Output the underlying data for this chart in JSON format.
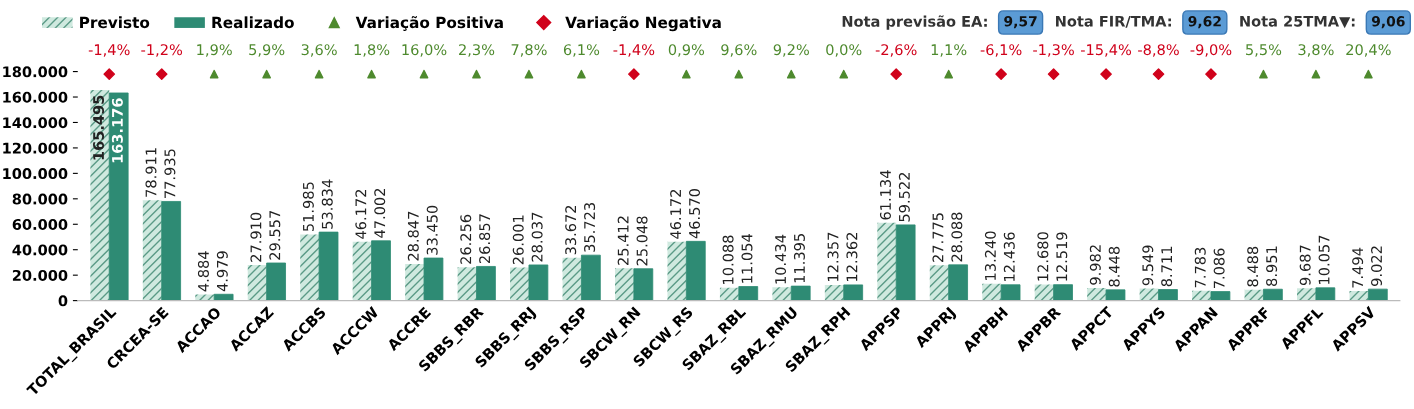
{
  "chart_data": {
    "type": "bar",
    "categories": [
      "TOTAL_BRASIL",
      "CRCEA-SE",
      "ACCAO",
      "ACCAZ",
      "ACCBS",
      "ACCCW",
      "ACCRE",
      "SBBS_RBR",
      "SBBS_RRJ",
      "SBBS_RSP",
      "SBCW_RN",
      "SBCW_RS",
      "SBAZ_RBL",
      "SBAZ_RMU",
      "SBAZ_RPH",
      "APPSP",
      "APPRJ",
      "APPBH",
      "APPBR",
      "APPCT",
      "APPYS",
      "APPAN",
      "APPRF",
      "APPFL",
      "APPSV"
    ],
    "series": [
      {
        "name": "Previsto",
        "color": "#cfe9df",
        "values": [
          165495,
          78911,
          4884,
          27910,
          51985,
          46172,
          28847,
          26256,
          26001,
          33672,
          25412,
          46172,
          10088,
          10434,
          12357,
          61134,
          27775,
          13240,
          12680,
          9982,
          9549,
          7783,
          8488,
          9687,
          7494
        ],
        "value_labels": [
          "165.495",
          "78.911",
          "4.884",
          "27.910",
          "51.985",
          "46.172",
          "28.847",
          "26.256",
          "26.001",
          "33.672",
          "25.412",
          "46.172",
          "10.088",
          "10.434",
          "12.357",
          "61.134",
          "27.775",
          "13.240",
          "12.680",
          "9.982",
          "9.549",
          "7.783",
          "8.488",
          "9.687",
          "7.494"
        ]
      },
      {
        "name": "Realizado",
        "color": "#2e8b74",
        "values": [
          163176,
          77935,
          4979,
          29557,
          53834,
          47002,
          33450,
          26857,
          28037,
          35723,
          25048,
          46570,
          11054,
          11395,
          12362,
          59522,
          28088,
          12436,
          12519,
          8448,
          8711,
          7086,
          8951,
          10057,
          9022
        ],
        "value_labels": [
          "163.176",
          "77.935",
          "4.979",
          "29.557",
          "53.834",
          "47.002",
          "33.450",
          "26.857",
          "28.037",
          "35.723",
          "25.048",
          "46.570",
          "11.054",
          "11.395",
          "12.362",
          "59.522",
          "28.088",
          "12.436",
          "12.519",
          "8.448",
          "8.711",
          "7.086",
          "8.951",
          "10.057",
          "9.022"
        ]
      },
      {
        "name": "Variação Positiva",
        "type": "scatter",
        "marker": "triangle",
        "color": "#4e8a2e",
        "values": [
          null,
          null,
          178000,
          178000,
          178000,
          178000,
          178000,
          178000,
          178000,
          178000,
          null,
          178000,
          178000,
          178000,
          178000,
          null,
          178000,
          null,
          null,
          null,
          null,
          null,
          178000,
          178000,
          178000
        ]
      },
      {
        "name": "Variação Negativa",
        "type": "scatter",
        "marker": "diamond",
        "color": "#d0021b",
        "values": [
          178000,
          178000,
          null,
          null,
          null,
          null,
          null,
          null,
          null,
          null,
          178000,
          null,
          null,
          null,
          null,
          178000,
          null,
          178000,
          178000,
          178000,
          178000,
          178000,
          null,
          null,
          null
        ]
      }
    ],
    "ylim": [
      0,
      180000
    ],
    "yticks": [
      {
        "value": 0,
        "label": "0"
      },
      {
        "value": 20000,
        "label": "20.000"
      },
      {
        "value": 40000,
        "label": "40.000"
      },
      {
        "value": 60000,
        "label": "60.000"
      },
      {
        "value": 80000,
        "label": "80.000"
      },
      {
        "value": 100000,
        "label": "100.000"
      },
      {
        "value": 120000,
        "label": "120.000"
      },
      {
        "value": 140000,
        "label": "140.000"
      },
      {
        "value": 160000,
        "label": "160.000"
      },
      {
        "value": 180000,
        "label": "180.000"
      }
    ],
    "grid": false,
    "legend": "top left",
    "annotations": [
      "Nota previsão EA:",
      "9,57",
      "Nota FIR/TMA:",
      "9,62",
      "Nota 25TMA▼:",
      "9,06",
      "-1,4%",
      "-1,2%",
      "1,9%",
      "5,9%",
      "3,6%",
      "1,8%",
      "16,0%",
      "2,3%",
      "7,8%",
      "6,1%",
      "-1,4%",
      "0,9%",
      "9,6%",
      "9,2%",
      "0,0%",
      "-2,6%",
      "1,1%",
      "-6,1%",
      "-1,3%",
      "-15,4%",
      "-8,8%",
      "-9,0%",
      "5,5%",
      "3,8%",
      "20,4%"
    ]
  }
}
